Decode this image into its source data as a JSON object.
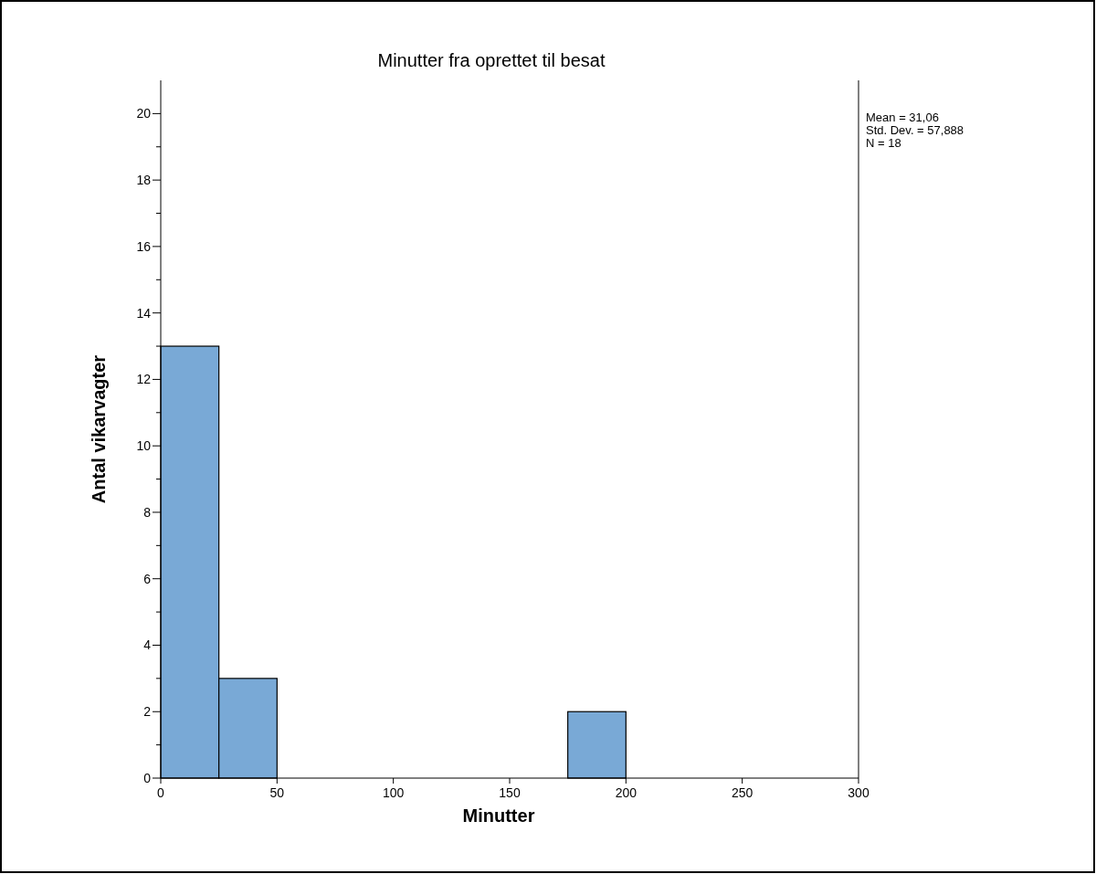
{
  "chart_data": {
    "type": "histogram",
    "title": "Minutter fra oprettet til besat",
    "xlabel": "Minutter",
    "ylabel": "Antal vikarvagter",
    "bins": [
      0,
      25,
      50,
      75,
      100,
      125,
      150,
      175,
      200,
      225,
      250,
      275,
      300
    ],
    "values": [
      13,
      3,
      0,
      0,
      0,
      0,
      0,
      2,
      0,
      0,
      0,
      0
    ],
    "color": "#79a9d6",
    "xlim": [
      0,
      300
    ],
    "xticks": [
      0,
      50,
      100,
      150,
      200,
      250,
      300
    ],
    "ylim": [
      0,
      21
    ],
    "yticks": [
      0,
      {
        "value": 1,
        "label": null
      },
      2,
      {
        "value": 3,
        "label": null
      },
      4,
      {
        "value": 5,
        "label": null
      },
      6,
      {
        "value": 7,
        "label": null
      },
      8,
      {
        "value": 9,
        "label": null
      },
      10,
      {
        "value": 11,
        "label": null
      },
      12,
      {
        "value": 13,
        "label": null
      },
      14,
      {
        "value": 15,
        "label": null
      },
      16,
      {
        "value": 17,
        "label": null
      },
      18,
      {
        "value": 19,
        "label": null
      },
      20
    ],
    "annotations": [
      "Mean = 31,06",
      "Std. Dev. = 57,888",
      "N = 18"
    ]
  }
}
